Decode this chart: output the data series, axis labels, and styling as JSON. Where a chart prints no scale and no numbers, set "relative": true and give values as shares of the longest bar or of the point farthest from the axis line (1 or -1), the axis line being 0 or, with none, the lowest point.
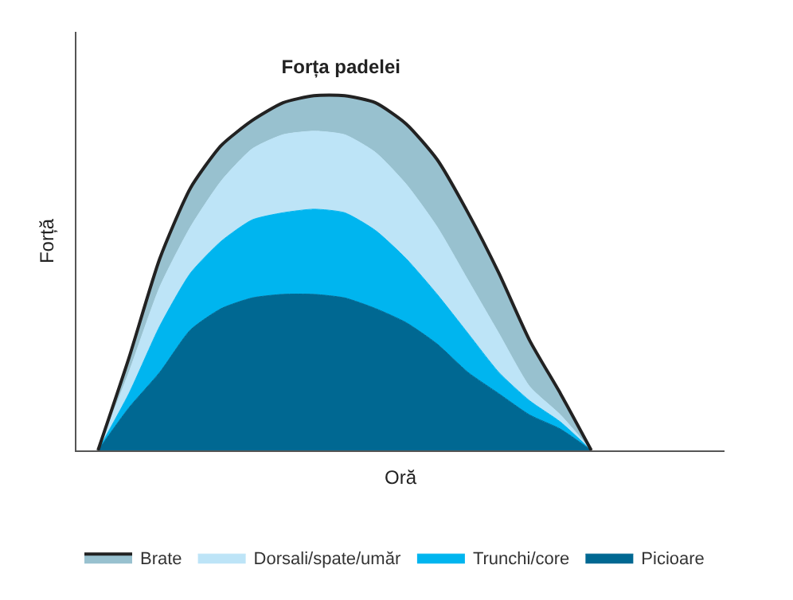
{
  "chart_data": {
    "type": "area",
    "title": "Forța padelei",
    "xlabel": "Oră",
    "ylabel": "Forță",
    "relative": true,
    "stacked": true,
    "legend": "bottom",
    "categories": [
      null,
      null,
      null,
      null,
      null,
      null,
      null,
      null,
      null,
      null,
      null,
      null,
      null,
      null,
      null,
      null,
      null
    ],
    "series": [
      {
        "name": "Picioare",
        "color": "#006892",
        "values": [
          0,
          0.12,
          0.22,
          0.34,
          0.4,
          0.43,
          0.44,
          0.44,
          0.43,
          0.4,
          0.36,
          0.3,
          0.22,
          0.16,
          0.1,
          0.06,
          0
        ]
      },
      {
        "name": "Trunchi/core",
        "color": "#00b5ef",
        "values": [
          0,
          0.04,
          0.13,
          0.16,
          0.19,
          0.22,
          0.23,
          0.24,
          0.24,
          0.22,
          0.18,
          0.14,
          0.11,
          0.06,
          0.04,
          0.02,
          0
        ]
      },
      {
        "name": "Dorsali/spate/umăr",
        "color": "#bde4f7",
        "values": [
          0,
          0.06,
          0.11,
          0.13,
          0.17,
          0.2,
          0.22,
          0.22,
          0.22,
          0.22,
          0.21,
          0.19,
          0.15,
          0.11,
          0.04,
          0.02,
          0
        ]
      },
      {
        "name": "Brate",
        "color": "#98c1cf",
        "values": [
          0,
          0.04,
          0.08,
          0.11,
          0.1,
          0.08,
          0.09,
          0.1,
          0.11,
          0.14,
          0.17,
          0.19,
          0.19,
          0.17,
          0.13,
          0.06,
          0
        ]
      }
    ]
  }
}
